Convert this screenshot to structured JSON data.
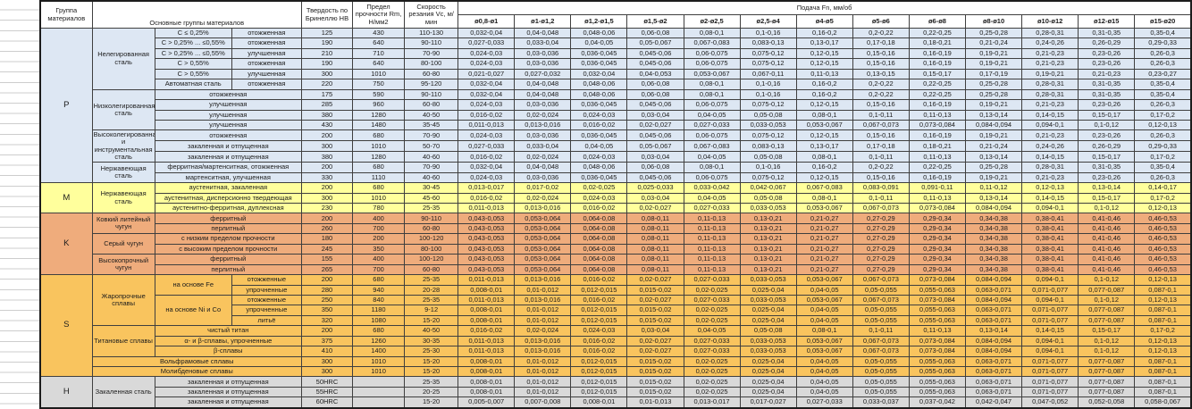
{
  "header": {
    "col_group": "Группа материалов",
    "col_materials": "Основные группы материалов",
    "col_hardness": "Твердость по Бринеллю НВ",
    "col_strength": "Предел прочности Rm, Н/мм2",
    "col_speed": "Скорость резания Vc, м/мин",
    "feed_title": "Подача Fn, мм/об",
    "feed_cols": [
      "ø0,8-ø1",
      "ø1-ø1,2",
      "ø1,2-ø1,5",
      "ø1,5-ø2",
      "ø2-ø2,5",
      "ø2,5-ø4",
      "ø4-ø5",
      "ø5-ø6",
      "ø6-ø8",
      "ø8-ø10",
      "ø10-ø12",
      "ø12-ø15",
      "ø15-ø20"
    ]
  },
  "feed_sets": {
    "F1": [
      "0,032-0,04",
      "0,04-0,048",
      "0,048-0,06",
      "0,06-0,08",
      "0,08-0,1",
      "0,1-0,16",
      "0,16-0,2",
      "0,2-0,22",
      "0,22-0,25",
      "0,25-0,28",
      "0,28-0,31",
      "0,31-0,35",
      "0,35-0,4"
    ],
    "F2": [
      "0,027-0,033",
      "0,033-0,04",
      "0,04-0,05",
      "0,05-0,067",
      "0,067-0,083",
      "0,083-0,13",
      "0,13-0,17",
      "0,17-0,18",
      "0,18-0,21",
      "0,21-0,24",
      "0,24-0,26",
      "0,26-0,29",
      "0,29-0,33"
    ],
    "F3": [
      "0,024-0,03",
      "0,03-0,036",
      "0,036-0,045",
      "0,045-0,06",
      "0,06-0,075",
      "0,075-0,12",
      "0,12-0,15",
      "0,15-0,16",
      "0,16-0,19",
      "0,19-0,21",
      "0,21-0,23",
      "0,23-0,26",
      "0,26-0,3"
    ],
    "F4": [
      "0,021-0,027",
      "0,027-0,032",
      "0,032-0,04",
      "0,04-0,053",
      "0,053-0,067",
      "0,067-0,11",
      "0,11-0,13",
      "0,13-0,15",
      "0,15-0,17",
      "0,17-0,19",
      "0,19-0,21",
      "0,21-0,23",
      "0,23-0,27"
    ],
    "F5": [
      "0,016-0,02",
      "0,02-0,024",
      "0,024-0,03",
      "0,03-0,04",
      "0,04-0,05",
      "0,05-0,08",
      "0,08-0,1",
      "0,1-0,11",
      "0,11-0,13",
      "0,13-0,14",
      "0,14-0,15",
      "0,15-0,17",
      "0,17-0,2"
    ],
    "F6": [
      "0,011-0,013",
      "0,013-0,016",
      "0,016-0,02",
      "0,02-0,027",
      "0,027-0,033",
      "0,033-0,053",
      "0,053-0,067",
      "0,067-0,073",
      "0,073-0,084",
      "0,084-0,094",
      "0,094-0,1",
      "0,1-0,12",
      "0,12-0,13"
    ],
    "F7": [
      "0,013-0,017",
      "0,017-0,02",
      "0,02-0,025",
      "0,025-0,033",
      "0,033-0,042",
      "0,042-0,067",
      "0,067-0,083",
      "0,083-0,091",
      "0,091-0,11",
      "0,11-0,12",
      "0,12-0,13",
      "0,13-0,14",
      "0,14-0,17"
    ],
    "F8": [
      "0,043-0,053",
      "0,053-0,064",
      "0,064-0,08",
      "0,08-0,11",
      "0,11-0,13",
      "0,13-0,21",
      "0,21-0,27",
      "0,27-0,29",
      "0,29-0,34",
      "0,34-0,38",
      "0,38-0,41",
      "0,41-0,46",
      "0,46-0,53"
    ],
    "F9": [
      "0,008-0,01",
      "0,01-0,012",
      "0,012-0,015",
      "0,015-0,02",
      "0,02-0,025",
      "0,025-0,04",
      "0,04-0,05",
      "0,05-0,055",
      "0,055-0,063",
      "0,063-0,071",
      "0,071-0,077",
      "0,077-0,087",
      "0,087-0,1"
    ],
    "F10": [
      "0,005-0,007",
      "0,007-0,008",
      "0,008-0,01",
      "0,01-0,013",
      "0,013-0,017",
      "0,017-0,027",
      "0,027-0,033",
      "0,033-0,037",
      "0,037-0,042",
      "0,042-0,047",
      "0,047-0,052",
      "0,052-0,058",
      "0,058-0,067"
    ]
  },
  "groups": [
    {
      "letter": "P",
      "color": "#dde7f3",
      "rows": [
        {
          "cells": [
            {
              "t": "Нелегированная сталь",
              "rs": 6
            },
            {
              "t": "C ≤ 0,25%"
            },
            {
              "t": "отожженная"
            },
            {
              "t": "125"
            },
            {
              "t": "430"
            },
            {
              "t": "110-130"
            }
          ],
          "feeds": "F1"
        },
        {
          "cells": [
            {
              "t": "C > 0,25% ... ≤0,55%"
            },
            {
              "t": "отожженная"
            },
            {
              "t": "190"
            },
            {
              "t": "640"
            },
            {
              "t": "90-110"
            }
          ],
          "feeds": "F2"
        },
        {
          "cells": [
            {
              "t": "C > 0,25% ... ≤0,55%"
            },
            {
              "t": "улучшенная"
            },
            {
              "t": "210"
            },
            {
              "t": "710"
            },
            {
              "t": "70-90"
            }
          ],
          "feeds": "F3"
        },
        {
          "cells": [
            {
              "t": "C > 0,55%"
            },
            {
              "t": "отожженная"
            },
            {
              "t": "190"
            },
            {
              "t": "640"
            },
            {
              "t": "80-100"
            }
          ],
          "feeds": "F3"
        },
        {
          "cells": [
            {
              "t": "C > 0,55%"
            },
            {
              "t": "улучшенная"
            },
            {
              "t": "300"
            },
            {
              "t": "1010"
            },
            {
              "t": "60-80"
            }
          ],
          "feeds": "F4"
        },
        {
          "cells": [
            {
              "t": "Автоматная сталь"
            },
            {
              "t": "отожженная"
            },
            {
              "t": "220"
            },
            {
              "t": "750"
            },
            {
              "t": "95-120"
            }
          ],
          "feeds": "F1"
        },
        {
          "cells": [
            {
              "t": "Низколегированная сталь",
              "rs": 4
            },
            {
              "t": "отожженная",
              "cs": 2
            },
            {
              "t": "175"
            },
            {
              "t": "590"
            },
            {
              "t": "90-110"
            }
          ],
          "feeds": "F1"
        },
        {
          "cells": [
            {
              "t": "улучшенная",
              "cs": 2
            },
            {
              "t": "285"
            },
            {
              "t": "960"
            },
            {
              "t": "60-80"
            }
          ],
          "feeds": "F3"
        },
        {
          "cells": [
            {
              "t": "улучшенная",
              "cs": 2
            },
            {
              "t": "380"
            },
            {
              "t": "1280"
            },
            {
              "t": "40-50"
            }
          ],
          "feeds": "F5"
        },
        {
          "cells": [
            {
              "t": "улучшенная",
              "cs": 2
            },
            {
              "t": "430"
            },
            {
              "t": "1480"
            },
            {
              "t": "35-45"
            }
          ],
          "feeds": "F6"
        },
        {
          "cells": [
            {
              "t": "Высоколегированная и инструментальная сталь",
              "rs": 3
            },
            {
              "t": "отожженная",
              "cs": 2
            },
            {
              "t": "200"
            },
            {
              "t": "680"
            },
            {
              "t": "70-90"
            }
          ],
          "feeds": "F3"
        },
        {
          "cells": [
            {
              "t": "закаленная и отпущенная",
              "cs": 2
            },
            {
              "t": "300"
            },
            {
              "t": "1010"
            },
            {
              "t": "50-70"
            }
          ],
          "feeds": "F2"
        },
        {
          "cells": [
            {
              "t": "закаленная и отпущенная",
              "cs": 2
            },
            {
              "t": "380"
            },
            {
              "t": "1280"
            },
            {
              "t": "40-60"
            }
          ],
          "feeds": "F5"
        },
        {
          "cells": [
            {
              "t": "Нержавеющая сталь",
              "rs": 2
            },
            {
              "t": "ферритная/мартенситная, отожженная",
              "cs": 2
            },
            {
              "t": "200"
            },
            {
              "t": "680"
            },
            {
              "t": "70-90"
            }
          ],
          "feeds": "F1"
        },
        {
          "cells": [
            {
              "t": "мартенситная, улучшенная",
              "cs": 2
            },
            {
              "t": "330"
            },
            {
              "t": "1110"
            },
            {
              "t": "40-60"
            }
          ],
          "feeds": "F3"
        }
      ]
    },
    {
      "letter": "M",
      "color": "#ffff9c",
      "rows": [
        {
          "cells": [
            {
              "t": "Нержавеющая сталь",
              "rs": 3
            },
            {
              "t": "аустенитная, закаленная",
              "cs": 2
            },
            {
              "t": "200"
            },
            {
              "t": "680"
            },
            {
              "t": "30-45"
            }
          ],
          "feeds": "F7"
        },
        {
          "cells": [
            {
              "t": "аустенитная, дисперсионно твердеющая",
              "cs": 2
            },
            {
              "t": "300"
            },
            {
              "t": "1010"
            },
            {
              "t": "45-60"
            }
          ],
          "feeds": "F5"
        },
        {
          "cells": [
            {
              "t": "аустенитно-ферритная, дуплексная",
              "cs": 2
            },
            {
              "t": "230"
            },
            {
              "t": "780"
            },
            {
              "t": "25-35"
            }
          ],
          "feeds": "F6"
        }
      ]
    },
    {
      "letter": "K",
      "color": "#efac7c",
      "rows": [
        {
          "cells": [
            {
              "t": "Ковкий литейный чугун",
              "rs": 2
            },
            {
              "t": "ферритный",
              "cs": 2
            },
            {
              "t": "200"
            },
            {
              "t": "400"
            },
            {
              "t": "90-110"
            }
          ],
          "feeds": "F8"
        },
        {
          "cells": [
            {
              "t": "перлитный",
              "cs": 2
            },
            {
              "t": "260"
            },
            {
              "t": "700"
            },
            {
              "t": "60-80"
            }
          ],
          "feeds": "F8"
        },
        {
          "cells": [
            {
              "t": "Серый чугун",
              "rs": 2
            },
            {
              "t": "с низким пределом прочности",
              "cs": 2
            },
            {
              "t": "180"
            },
            {
              "t": "200"
            },
            {
              "t": "100-120"
            }
          ],
          "feeds": "F8"
        },
        {
          "cells": [
            {
              "t": "с высоким пределом прочности",
              "cs": 2
            },
            {
              "t": "245"
            },
            {
              "t": "350"
            },
            {
              "t": "80-100"
            }
          ],
          "feeds": "F8"
        },
        {
          "cells": [
            {
              "t": "Высокопрочный чугун",
              "rs": 2
            },
            {
              "t": "ферритный",
              "cs": 2
            },
            {
              "t": "155"
            },
            {
              "t": "400"
            },
            {
              "t": "100-120"
            }
          ],
          "feeds": "F8"
        },
        {
          "cells": [
            {
              "t": "перлитный",
              "cs": 2
            },
            {
              "t": "265"
            },
            {
              "t": "700"
            },
            {
              "t": "60-80"
            }
          ],
          "feeds": "F8"
        }
      ]
    },
    {
      "letter": "S",
      "color": "#f9c45e",
      "rows": [
        {
          "cells": [
            {
              "t": "Жаропрочные сплавы",
              "rs": 5
            },
            {
              "t": "на основе Fe",
              "rs": 2
            },
            {
              "t": "отожженные"
            },
            {
              "t": "200"
            },
            {
              "t": "680"
            },
            {
              "t": "25-35"
            }
          ],
          "feeds": "F6"
        },
        {
          "cells": [
            {
              "t": "упрочненные"
            },
            {
              "t": "280"
            },
            {
              "t": "940"
            },
            {
              "t": "20-28"
            }
          ],
          "feeds": "F9"
        },
        {
          "cells": [
            {
              "t": "на основе Ni и Co",
              "rs": 3
            },
            {
              "t": "отожженные"
            },
            {
              "t": "250"
            },
            {
              "t": "840"
            },
            {
              "t": "25-35"
            }
          ],
          "feeds": "F6"
        },
        {
          "cells": [
            {
              "t": "упрочненные"
            },
            {
              "t": "350"
            },
            {
              "t": "1180"
            },
            {
              "t": "9-12"
            }
          ],
          "feeds": "F9"
        },
        {
          "cells": [
            {
              "t": "литьё"
            },
            {
              "t": "320"
            },
            {
              "t": "1080"
            },
            {
              "t": "15-20"
            }
          ],
          "feeds": "F9"
        },
        {
          "cells": [
            {
              "t": "Титановые сплавы",
              "rs": 3
            },
            {
              "t": "чистый титан",
              "cs": 2
            },
            {
              "t": "200"
            },
            {
              "t": "680"
            },
            {
              "t": "40-50"
            }
          ],
          "feeds": "F5"
        },
        {
          "cells": [
            {
              "t": "α- и β-сплавы, упрочненные",
              "cs": 2
            },
            {
              "t": "375"
            },
            {
              "t": "1260"
            },
            {
              "t": "30-35"
            }
          ],
          "feeds": "F6"
        },
        {
          "cells": [
            {
              "t": "β-сплавы",
              "cs": 2
            },
            {
              "t": "410"
            },
            {
              "t": "1400"
            },
            {
              "t": "25-30"
            }
          ],
          "feeds": "F6"
        },
        {
          "cells": [
            {
              "t": "Вольфрамовые сплавы",
              "cs": 3
            },
            {
              "t": "300"
            },
            {
              "t": "1010"
            },
            {
              "t": "15-20"
            }
          ],
          "feeds": "F9"
        },
        {
          "cells": [
            {
              "t": "Молибденовые сплавы",
              "cs": 3
            },
            {
              "t": "300"
            },
            {
              "t": "1010"
            },
            {
              "t": "15-20"
            }
          ],
          "feeds": "F9"
        }
      ]
    },
    {
      "letter": "H",
      "color": "#d9d9d9",
      "rows": [
        {
          "cells": [
            {
              "t": "Закаленная сталь",
              "rs": 3
            },
            {
              "t": "закаленная и отпущенная",
              "cs": 2
            },
            {
              "t": "50HRC"
            },
            {
              "t": ""
            },
            {
              "t": "25-35"
            }
          ],
          "feeds": "F9"
        },
        {
          "cells": [
            {
              "t": "закаленная и отпущенная",
              "cs": 2
            },
            {
              "t": "55HRC"
            },
            {
              "t": ""
            },
            {
              "t": "20-25"
            }
          ],
          "feeds": "F9"
        },
        {
          "cells": [
            {
              "t": "закаленная и отпущенная",
              "cs": 2
            },
            {
              "t": "60HRC"
            },
            {
              "t": ""
            },
            {
              "t": "15-20"
            }
          ],
          "feeds": "F10"
        }
      ]
    }
  ]
}
